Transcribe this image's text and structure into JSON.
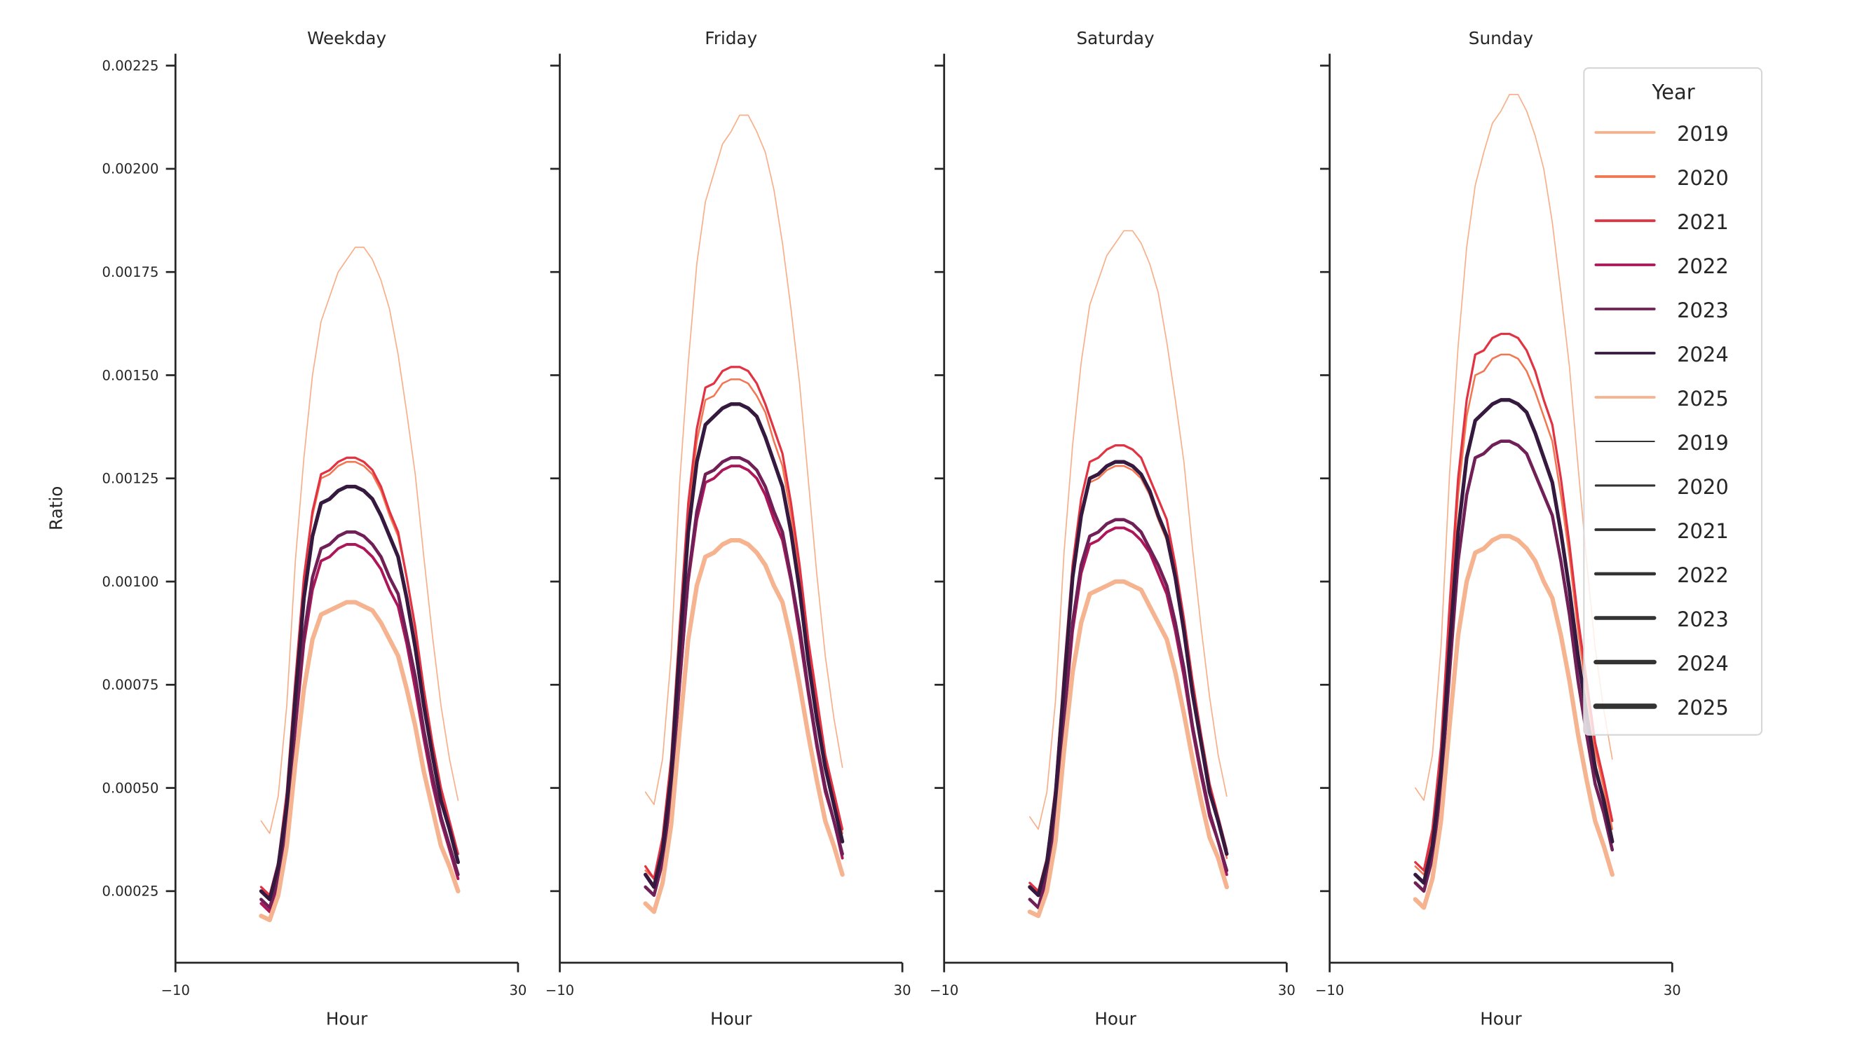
{
  "chart_data": {
    "type": "line",
    "xlabel": "Hour",
    "ylabel": "Ratio",
    "xlim": [
      -10,
      30
    ],
    "ylim": [
      8e-05,
      0.00228
    ],
    "xticks": [
      -10,
      30
    ],
    "xtick_labels": [
      "−10",
      "30"
    ],
    "yticks": [
      0.00025,
      0.0005,
      0.00075,
      0.001,
      0.00125,
      0.0015,
      0.00175,
      0.002,
      0.00225
    ],
    "ytick_labels": [
      "0.00025",
      "0.00050",
      "0.00075",
      "0.00100",
      "0.00125",
      "0.00150",
      "0.00175",
      "0.00200",
      "0.00225"
    ],
    "grid": false,
    "x": [
      0,
      1,
      2,
      3,
      4,
      5,
      6,
      7,
      8,
      9,
      10,
      11,
      12,
      13,
      14,
      15,
      16,
      17,
      18,
      19,
      20,
      21,
      22,
      23
    ],
    "colors": {
      "2019": "#f7b08a",
      "2020": "#f37651",
      "2021": "#e13342",
      "2022": "#ad1759",
      "2023": "#701f57",
      "2024": "#35193e",
      "2025": "#f5b38f"
    },
    "line_widths": {
      "2019": 1.0,
      "2020": 1.5,
      "2021": 1.9,
      "2022": 2.3,
      "2023": 2.7,
      "2024": 3.1,
      "2025": 3.7
    },
    "legend": {
      "title": "Year",
      "placement": "top-right",
      "hue_entries": [
        "2019",
        "2020",
        "2021",
        "2022",
        "2023",
        "2024",
        "2025"
      ],
      "size_entries": [
        "2019",
        "2020",
        "2021",
        "2022",
        "2023",
        "2024",
        "2025"
      ],
      "size_color": "#333333"
    },
    "facets": [
      {
        "title": "Weekday",
        "series": [
          {
            "name": "2019",
            "values": [
              0.00042,
              0.00039,
              0.00048,
              0.0007,
              0.00105,
              0.0013,
              0.0015,
              0.00163,
              0.00169,
              0.00175,
              0.00178,
              0.00181,
              0.00181,
              0.00178,
              0.00173,
              0.00166,
              0.00155,
              0.00141,
              0.00126,
              0.00106,
              0.00087,
              0.0007,
              0.00057,
              0.00047
            ]
          },
          {
            "name": "2020",
            "values": [
              0.00026,
              0.00024,
              0.00032,
              0.00048,
              0.00075,
              0.00101,
              0.00116,
              0.00125,
              0.00126,
              0.00128,
              0.00129,
              0.00129,
              0.00128,
              0.00126,
              0.00122,
              0.00116,
              0.00111,
              0.00101,
              0.00088,
              0.00073,
              0.00061,
              0.00049,
              0.00042,
              0.00034
            ]
          },
          {
            "name": "2021",
            "values": [
              0.00026,
              0.00024,
              0.00032,
              0.00049,
              0.00076,
              0.00101,
              0.00117,
              0.00126,
              0.00127,
              0.00129,
              0.0013,
              0.0013,
              0.00129,
              0.00127,
              0.00123,
              0.00117,
              0.00112,
              0.00101,
              0.00089,
              0.00074,
              0.00061,
              0.0005,
              0.00042,
              0.00034
            ]
          },
          {
            "name": "2022",
            "values": [
              0.00022,
              0.0002,
              0.00027,
              0.00041,
              0.00064,
              0.00085,
              0.00098,
              0.00105,
              0.00106,
              0.00108,
              0.00109,
              0.00109,
              0.00108,
              0.00106,
              0.00103,
              0.00098,
              0.00094,
              0.00085,
              0.00074,
              0.00062,
              0.00051,
              0.00042,
              0.00035,
              0.00028
            ]
          },
          {
            "name": "2023",
            "values": [
              0.00023,
              0.00021,
              0.00028,
              0.00042,
              0.00066,
              0.00087,
              0.00101,
              0.00108,
              0.00109,
              0.00111,
              0.00112,
              0.00112,
              0.00111,
              0.00109,
              0.00106,
              0.00101,
              0.00097,
              0.00087,
              0.00077,
              0.00064,
              0.00053,
              0.00043,
              0.00036,
              0.00029
            ]
          },
          {
            "name": "2024",
            "values": [
              0.00025,
              0.00023,
              0.00031,
              0.00046,
              0.00072,
              0.00096,
              0.00111,
              0.00119,
              0.0012,
              0.00122,
              0.00123,
              0.00123,
              0.00122,
              0.0012,
              0.00116,
              0.00111,
              0.00106,
              0.00096,
              0.00084,
              0.0007,
              0.00058,
              0.00047,
              0.0004,
              0.00032
            ]
          },
          {
            "name": "2025",
            "values": [
              0.00019,
              0.00018,
              0.00024,
              0.00036,
              0.00056,
              0.00074,
              0.00086,
              0.00092,
              0.00093,
              0.00094,
              0.00095,
              0.00095,
              0.00094,
              0.00093,
              0.0009,
              0.00086,
              0.00082,
              0.00074,
              0.00065,
              0.00054,
              0.00045,
              0.00036,
              0.00031,
              0.00025
            ]
          }
        ]
      },
      {
        "title": "Friday",
        "series": [
          {
            "name": "2019",
            "values": [
              0.00049,
              0.00046,
              0.00057,
              0.00082,
              0.00124,
              0.00153,
              0.00177,
              0.00192,
              0.00199,
              0.00206,
              0.00209,
              0.00213,
              0.00213,
              0.00209,
              0.00204,
              0.00195,
              0.00182,
              0.00166,
              0.00148,
              0.00125,
              0.00102,
              0.00082,
              0.00067,
              0.00055
            ]
          },
          {
            "name": "2020",
            "values": [
              0.0003,
              0.00028,
              0.00037,
              0.00056,
              0.00087,
              0.00116,
              0.00134,
              0.00144,
              0.00145,
              0.00148,
              0.00149,
              0.00149,
              0.00148,
              0.00145,
              0.00141,
              0.00134,
              0.00128,
              0.00116,
              0.00102,
              0.00085,
              0.0007,
              0.00057,
              0.00048,
              0.00039
            ]
          },
          {
            "name": "2021",
            "values": [
              0.00031,
              0.00028,
              0.00038,
              0.00057,
              0.00089,
              0.00119,
              0.00137,
              0.00147,
              0.00148,
              0.00151,
              0.00152,
              0.00152,
              0.00151,
              0.00148,
              0.00143,
              0.00137,
              0.00131,
              0.00119,
              0.00104,
              0.00086,
              0.00072,
              0.00058,
              0.00049,
              0.0004
            ]
          },
          {
            "name": "2022",
            "values": [
              0.00026,
              0.00024,
              0.00032,
              0.00048,
              0.00075,
              0.001,
              0.00115,
              0.00124,
              0.00125,
              0.00127,
              0.00128,
              0.00128,
              0.00127,
              0.00125,
              0.00121,
              0.00115,
              0.0011,
              0.001,
              0.00087,
              0.00073,
              0.0006,
              0.00049,
              0.00042,
              0.00033
            ]
          },
          {
            "name": "2023",
            "values": [
              0.00026,
              0.00024,
              0.00032,
              0.00049,
              0.00076,
              0.00101,
              0.00117,
              0.00126,
              0.00127,
              0.00129,
              0.0013,
              0.0013,
              0.00129,
              0.00127,
              0.00123,
              0.00117,
              0.00112,
              0.00101,
              0.00089,
              0.00074,
              0.00061,
              0.0005,
              0.00042,
              0.00034
            ]
          },
          {
            "name": "2024",
            "values": [
              0.00029,
              0.00026,
              0.00035,
              0.00053,
              0.00084,
              0.00112,
              0.00129,
              0.00138,
              0.0014,
              0.00142,
              0.00143,
              0.00143,
              0.00142,
              0.0014,
              0.00135,
              0.00129,
              0.00123,
              0.00112,
              0.00098,
              0.00081,
              0.00067,
              0.00055,
              0.00046,
              0.00037
            ]
          },
          {
            "name": "2025",
            "values": [
              0.00022,
              0.0002,
              0.00027,
              0.00041,
              0.00064,
              0.00086,
              0.00099,
              0.00106,
              0.00107,
              0.00109,
              0.0011,
              0.0011,
              0.00109,
              0.00107,
              0.00104,
              0.00099,
              0.00095,
              0.00086,
              0.00075,
              0.00063,
              0.00052,
              0.00042,
              0.00036,
              0.00029
            ]
          }
        ]
      },
      {
        "title": "Saturday",
        "series": [
          {
            "name": "2019",
            "values": [
              0.00043,
              0.0004,
              0.00049,
              0.00071,
              0.00107,
              0.00133,
              0.00153,
              0.00167,
              0.00173,
              0.00179,
              0.00182,
              0.00185,
              0.00185,
              0.00182,
              0.00177,
              0.0017,
              0.00158,
              0.00144,
              0.00129,
              0.00108,
              0.00089,
              0.00072,
              0.00058,
              0.00048
            ]
          },
          {
            "name": "2020",
            "values": [
              0.00026,
              0.00024,
              0.00032,
              0.00048,
              0.00075,
              0.001,
              0.00115,
              0.00124,
              0.00125,
              0.00127,
              0.00128,
              0.00128,
              0.00127,
              0.00125,
              0.00121,
              0.00115,
              0.0011,
              0.001,
              0.00087,
              0.00073,
              0.0006,
              0.00049,
              0.00042,
              0.00033
            ]
          },
          {
            "name": "2021",
            "values": [
              0.00027,
              0.00025,
              0.00033,
              0.0005,
              0.00078,
              0.00104,
              0.0012,
              0.00129,
              0.0013,
              0.00132,
              0.00133,
              0.00133,
              0.00132,
              0.0013,
              0.00125,
              0.0012,
              0.00115,
              0.00104,
              0.00091,
              0.00076,
              0.00063,
              0.00051,
              0.00043,
              0.00035
            ]
          },
          {
            "name": "2022",
            "values": [
              0.00023,
              0.00021,
              0.00028,
              0.00042,
              0.00066,
              0.00088,
              0.00102,
              0.00109,
              0.0011,
              0.00112,
              0.00113,
              0.00113,
              0.00112,
              0.0011,
              0.00107,
              0.00102,
              0.00097,
              0.00088,
              0.00077,
              0.00064,
              0.00053,
              0.00043,
              0.00037,
              0.00029
            ]
          },
          {
            "name": "2023",
            "values": [
              0.00023,
              0.00021,
              0.00029,
              0.00043,
              0.00067,
              0.0009,
              0.00104,
              0.00111,
              0.00112,
              0.00114,
              0.00115,
              0.00115,
              0.00114,
              0.00112,
              0.00108,
              0.00104,
              0.00099,
              0.0009,
              0.00079,
              0.00065,
              0.00054,
              0.00044,
              0.00037,
              0.0003
            ]
          },
          {
            "name": "2024",
            "values": [
              0.00026,
              0.00024,
              0.00032,
              0.00048,
              0.00075,
              0.00101,
              0.00116,
              0.00125,
              0.00126,
              0.00128,
              0.00129,
              0.00129,
              0.00128,
              0.00126,
              0.00122,
              0.00116,
              0.00111,
              0.00101,
              0.00088,
              0.00073,
              0.00061,
              0.00049,
              0.00042,
              0.00034
            ]
          },
          {
            "name": "2025",
            "values": [
              0.0002,
              0.00019,
              0.00025,
              0.00037,
              0.00059,
              0.00078,
              0.0009,
              0.00097,
              0.00098,
              0.00099,
              0.001,
              0.001,
              0.00099,
              0.00098,
              0.00094,
              0.0009,
              0.00086,
              0.00078,
              0.00068,
              0.00057,
              0.00047,
              0.00038,
              0.00033,
              0.00026
            ]
          }
        ]
      },
      {
        "title": "Sunday",
        "series": [
          {
            "name": "2019",
            "values": [
              0.0005,
              0.00047,
              0.00058,
              0.00084,
              0.00126,
              0.00157,
              0.00181,
              0.00196,
              0.00204,
              0.00211,
              0.00214,
              0.00218,
              0.00218,
              0.00214,
              0.00208,
              0.002,
              0.00187,
              0.0017,
              0.00152,
              0.00128,
              0.00105,
              0.00084,
              0.00069,
              0.00057
            ]
          },
          {
            "name": "2020",
            "values": [
              0.00031,
              0.00029,
              0.00038,
              0.00058,
              0.00091,
              0.00121,
              0.0014,
              0.0015,
              0.00151,
              0.00154,
              0.00155,
              0.00155,
              0.00154,
              0.00151,
              0.00146,
              0.0014,
              0.00134,
              0.00121,
              0.00106,
              0.00088,
              0.00073,
              0.00059,
              0.0005,
              0.0004
            ]
          },
          {
            "name": "2021",
            "values": [
              0.00032,
              0.0003,
              0.0004,
              0.0006,
              0.00094,
              0.00125,
              0.00144,
              0.00155,
              0.00156,
              0.00159,
              0.0016,
              0.0016,
              0.00159,
              0.00156,
              0.00151,
              0.00144,
              0.00138,
              0.00125,
              0.00109,
              0.00091,
              0.00076,
              0.00061,
              0.00052,
              0.00042
            ]
          },
          {
            "name": "2022",
            "values": [
              0.00027,
              0.00025,
              0.00033,
              0.0005,
              0.00078,
              0.00105,
              0.00121,
              0.0013,
              0.00131,
              0.00133,
              0.00134,
              0.00134,
              0.00133,
              0.00131,
              0.00126,
              0.00121,
              0.00116,
              0.00105,
              0.00092,
              0.00076,
              0.00063,
              0.00051,
              0.00044,
              0.00035
            ]
          },
          {
            "name": "2023",
            "values": [
              0.00027,
              0.00025,
              0.00033,
              0.0005,
              0.00078,
              0.00105,
              0.00121,
              0.0013,
              0.00131,
              0.00133,
              0.00134,
              0.00134,
              0.00133,
              0.00131,
              0.00126,
              0.00121,
              0.00116,
              0.00105,
              0.00092,
              0.00076,
              0.00063,
              0.00051,
              0.00044,
              0.00035
            ]
          },
          {
            "name": "2024",
            "values": [
              0.00029,
              0.00027,
              0.00036,
              0.00054,
              0.00084,
              0.00112,
              0.0013,
              0.00139,
              0.00141,
              0.00143,
              0.00144,
              0.00144,
              0.00143,
              0.00141,
              0.00136,
              0.0013,
              0.00124,
              0.00112,
              0.00098,
              0.00082,
              0.00068,
              0.00055,
              0.00047,
              0.00037
            ]
          },
          {
            "name": "2025",
            "values": [
              0.00023,
              0.00021,
              0.00028,
              0.00042,
              0.00065,
              0.00087,
              0.001,
              0.00107,
              0.00108,
              0.0011,
              0.00111,
              0.00111,
              0.0011,
              0.00108,
              0.00105,
              0.001,
              0.00096,
              0.00087,
              0.00076,
              0.00063,
              0.00052,
              0.00042,
              0.00036,
              0.00029
            ]
          }
        ]
      }
    ]
  }
}
